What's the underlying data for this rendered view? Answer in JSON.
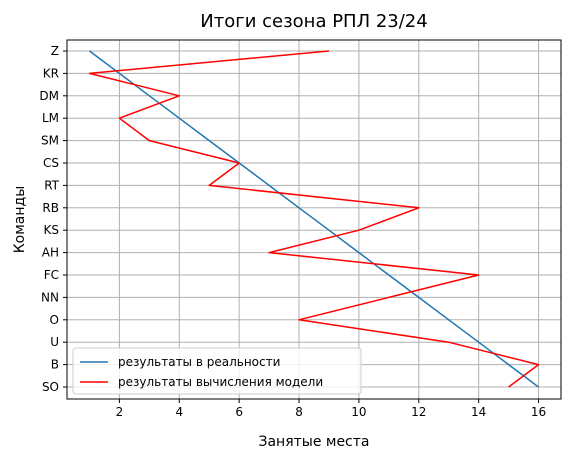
{
  "chart_data": {
    "type": "line",
    "title": "Итоги сезона РПЛ 23/24",
    "xlabel": "Занятые места",
    "ylabel": "Команды",
    "categories": [
      "Z",
      "KR",
      "DM",
      "LM",
      "SM",
      "CS",
      "RT",
      "RB",
      "KS",
      "AH",
      "FC",
      "NN",
      "O",
      "U",
      "B",
      "SO"
    ],
    "xticks": [
      2,
      4,
      6,
      8,
      10,
      12,
      14,
      16
    ],
    "xlim": [
      0.25,
      16.75
    ],
    "grid": true,
    "legend_position": "lower-left",
    "series": [
      {
        "name": "результаты в реальности",
        "color": "#1f77b4",
        "values": [
          1,
          2,
          3,
          4,
          5,
          6,
          7,
          8,
          9,
          10,
          11,
          12,
          13,
          14,
          15,
          16
        ]
      },
      {
        "name": "результаты вычисления модели",
        "color": "#ff0000",
        "values": [
          9,
          1,
          4,
          2,
          3,
          6,
          5,
          12,
          10,
          7,
          14,
          11,
          8,
          13,
          16,
          15
        ]
      }
    ]
  }
}
